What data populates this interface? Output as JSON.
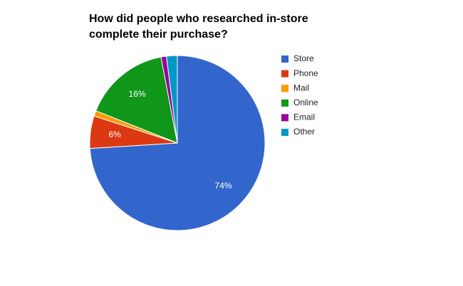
{
  "chart_data": {
    "type": "pie",
    "title": "How did people who researched in-store complete their purchase?",
    "categories": [
      "Store",
      "Phone",
      "Mail",
      "Online",
      "Email",
      "Other"
    ],
    "values": [
      74,
      6,
      1,
      16,
      1,
      2
    ],
    "value_labels": [
      "74%",
      "6%",
      null,
      "16%",
      null,
      null
    ],
    "colors": [
      "#3366cc",
      "#dc3912",
      "#ff9900",
      "#109618",
      "#990099",
      "#0099c6"
    ],
    "legend": "right"
  }
}
